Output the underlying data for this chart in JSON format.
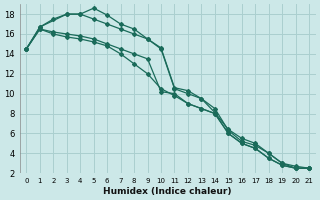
{
  "xlabel": "Humidex (Indice chaleur)",
  "ylabel": "",
  "bg_color": "#cce8e8",
  "grid_color": "#aacfcf",
  "line_color": "#1a6b5a",
  "xlim": [
    -0.5,
    21.5
  ],
  "ylim": [
    2,
    19
  ],
  "yticks": [
    2,
    4,
    6,
    8,
    10,
    12,
    14,
    16,
    18
  ],
  "xticks": [
    0,
    1,
    2,
    3,
    4,
    5,
    6,
    7,
    8,
    9,
    10,
    11,
    12,
    13,
    14,
    15,
    16,
    17,
    18,
    19,
    20,
    21
  ],
  "lines": [
    {
      "x": [
        0,
        1,
        2,
        3,
        4,
        5,
        6,
        7,
        8,
        9,
        10,
        11,
        12,
        13,
        14,
        15,
        16,
        17,
        18,
        19,
        20,
        21
      ],
      "y": [
        14.5,
        16.7,
        17.5,
        18.0,
        18.0,
        18.6,
        17.9,
        17.0,
        16.5,
        15.5,
        14.6,
        10.6,
        10.3,
        9.5,
        8.1,
        6.4,
        5.5,
        5.0,
        4.0,
        3.0,
        2.5,
        2.5
      ]
    },
    {
      "x": [
        0,
        1,
        3,
        4,
        5,
        6,
        7,
        8,
        9,
        10,
        11,
        12,
        13,
        14,
        15,
        16,
        17,
        18,
        19,
        20,
        21
      ],
      "y": [
        14.5,
        16.7,
        18.0,
        18.0,
        17.5,
        17.0,
        16.5,
        16.0,
        15.5,
        14.5,
        10.5,
        10.0,
        9.5,
        8.5,
        6.3,
        5.2,
        4.8,
        4.0,
        3.0,
        2.7,
        2.5
      ]
    },
    {
      "x": [
        0,
        1,
        2,
        3,
        4,
        5,
        6,
        7,
        8,
        9,
        10,
        11,
        12,
        13,
        14,
        15,
        16,
        17,
        18,
        19,
        20,
        21
      ],
      "y": [
        14.5,
        16.5,
        16.2,
        16.0,
        15.8,
        15.5,
        15.0,
        14.5,
        14.0,
        13.5,
        10.2,
        10.0,
        9.0,
        8.5,
        8.0,
        6.0,
        5.0,
        4.5,
        3.5,
        2.8,
        2.5,
        2.5
      ]
    },
    {
      "x": [
        0,
        1,
        2,
        3,
        4,
        5,
        6,
        7,
        8,
        9,
        10,
        11,
        12,
        13,
        14,
        15,
        16,
        17,
        18,
        19,
        20,
        21
      ],
      "y": [
        14.5,
        16.5,
        16.0,
        15.7,
        15.5,
        15.2,
        14.8,
        14.0,
        13.0,
        12.0,
        10.5,
        9.8,
        9.0,
        8.5,
        8.0,
        6.0,
        5.0,
        4.5,
        3.5,
        2.8,
        2.5,
        2.5
      ]
    }
  ]
}
